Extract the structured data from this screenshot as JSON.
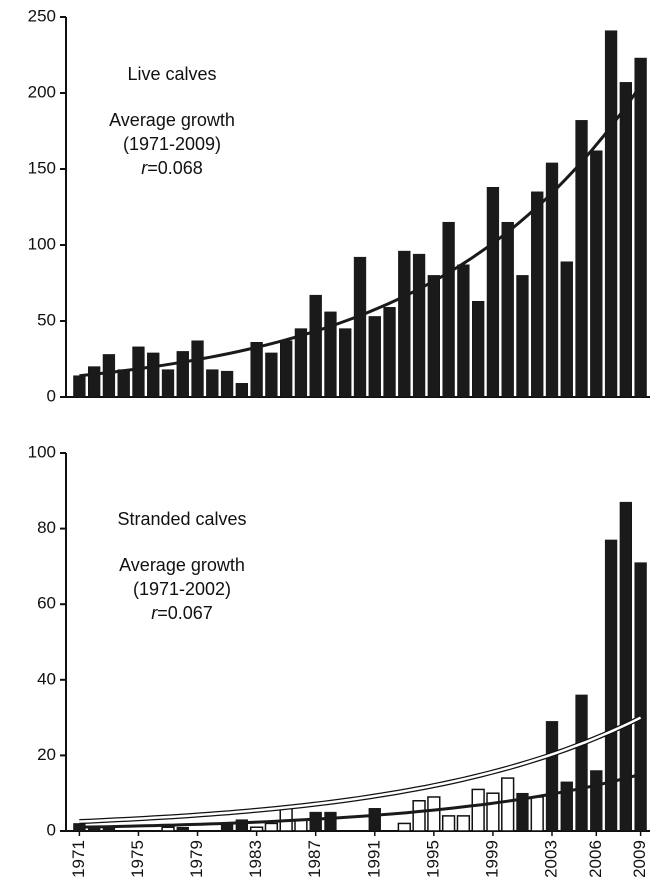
{
  "chart_data": [
    {
      "type": "bar",
      "annotations": [
        {
          "text": "Live calves"
        },
        {
          "text": "Average growth"
        },
        {
          "text": "(1971-2009)"
        },
        {
          "italic": "r",
          "text": "=0.068"
        }
      ],
      "ylim": [
        0,
        250
      ],
      "yticks": [
        0,
        50,
        100,
        150,
        200,
        250
      ],
      "series": [
        {
          "color": "#1a1a1a",
          "values": [
            14,
            20,
            28,
            18,
            33,
            29,
            18,
            30,
            37,
            18,
            17,
            9,
            36,
            29,
            37,
            45,
            67,
            56,
            45,
            92,
            53,
            59,
            96,
            94,
            80,
            115,
            87,
            63,
            138,
            115,
            80,
            135,
            154,
            89,
            182,
            162,
            241,
            207,
            223
          ]
        }
      ],
      "trends": [
        {
          "color": "#1a1a1a",
          "values": [
            14,
            205
          ]
        }
      ]
    },
    {
      "type": "bar",
      "annotations": [
        {
          "text": "Stranded calves"
        },
        {
          "text": "Average growth"
        },
        {
          "text": "(1971-2002)"
        },
        {
          "italic": "r",
          "text": "=0.067"
        }
      ],
      "categories": [
        "1971",
        null,
        null,
        null,
        "1975",
        null,
        null,
        null,
        "1979",
        null,
        null,
        null,
        "1983",
        null,
        null,
        null,
        "1987",
        null,
        null,
        null,
        "1991",
        null,
        null,
        null,
        "1995",
        null,
        null,
        null,
        "1999",
        null,
        null,
        null,
        "2003",
        null,
        null,
        "2006",
        null,
        null,
        "2009"
      ],
      "ylim": [
        0,
        100
      ],
      "yticks": [
        0,
        20,
        40,
        60,
        80,
        100
      ],
      "series": [
        {
          "color": "#1a1a1a",
          "values": [
            2,
            1,
            1,
            null,
            null,
            null,
            null,
            1,
            null,
            null,
            2,
            3,
            null,
            null,
            null,
            null,
            5,
            5,
            null,
            null,
            6,
            null,
            null,
            null,
            null,
            null,
            null,
            null,
            null,
            null,
            10,
            null,
            29,
            13,
            36,
            16,
            77,
            87,
            71
          ]
        },
        {
          "color": "#ffffff",
          "values": [
            null,
            null,
            null,
            null,
            null,
            null,
            1,
            null,
            null,
            null,
            null,
            null,
            1,
            2,
            6,
            3,
            null,
            null,
            null,
            null,
            null,
            null,
            2,
            8,
            9,
            4,
            4,
            11,
            10,
            14,
            null,
            9,
            null,
            null,
            null,
            null,
            null,
            null,
            null
          ]
        }
      ],
      "trends": [
        {
          "color": "#ffffff",
          "values": [
            2.5,
            30
          ]
        },
        {
          "color": "#1a1a1a",
          "values": [
            1,
            15
          ]
        }
      ]
    }
  ]
}
